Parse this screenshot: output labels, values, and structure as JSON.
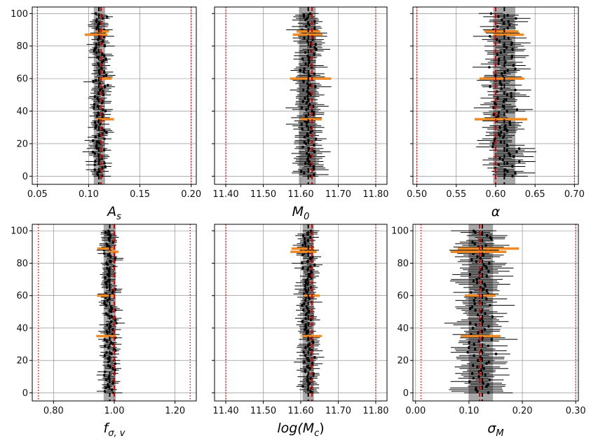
{
  "chart_data": [
    {
      "type": "scatter",
      "xlabel_main": "A",
      "xlabel_sub": "s",
      "xlim": [
        0.045,
        0.205
      ],
      "ylim": [
        -5,
        104
      ],
      "xticks": [
        0.05,
        0.1,
        0.15,
        0.2
      ],
      "xtick_labels": [
        "0.05",
        "0.10",
        "0.15",
        "0.20"
      ],
      "yticks": [
        0,
        20,
        40,
        60,
        80,
        100
      ],
      "ytick_labels": [
        "0",
        "20",
        "40",
        "60",
        "80",
        "100"
      ],
      "show_yticklabels": true,
      "band": [
        0.105,
        0.116
      ],
      "true_value": 0.112,
      "mean_value": 0.11,
      "prior_bounds": [
        0.05,
        0.2
      ],
      "center": 0.111,
      "spread": 0.004,
      "err": 0.007,
      "grid": true
    },
    {
      "type": "scatter",
      "xlabel_main": "M",
      "xlabel_sub": "0",
      "xlim": [
        11.37,
        11.83
      ],
      "ylim": [
        -5,
        104
      ],
      "xticks": [
        11.4,
        11.5,
        11.6,
        11.7,
        11.8
      ],
      "xtick_labels": [
        "11.40",
        "11.50",
        "11.60",
        "11.70",
        "11.80"
      ],
      "yticks": [
        0,
        20,
        40,
        60,
        80,
        100
      ],
      "ytick_labels": [
        "0",
        "20",
        "40",
        "60",
        "80",
        "100"
      ],
      "show_yticklabels": false,
      "band": [
        11.595,
        11.64
      ],
      "true_value": 11.63,
      "mean_value": 11.62,
      "prior_bounds": [
        11.4,
        11.8
      ],
      "center": 11.62,
      "spread": 0.012,
      "err": 0.03,
      "grid": true
    },
    {
      "type": "scatter",
      "xlabel_main": "α",
      "xlabel_sub": "",
      "xlim": [
        0.495,
        0.705
      ],
      "ylim": [
        -5,
        104
      ],
      "xticks": [
        0.5,
        0.55,
        0.6,
        0.65,
        0.7
      ],
      "xtick_labels": [
        "0.50",
        "0.55",
        "0.60",
        "0.65",
        "0.70"
      ],
      "yticks": [
        0,
        20,
        40,
        60,
        80,
        100
      ],
      "ytick_labels": [
        "0",
        "20",
        "40",
        "60",
        "80",
        "100"
      ],
      "show_yticklabels": false,
      "band": [
        0.597,
        0.625
      ],
      "true_value": 0.6,
      "mean_value": 0.611,
      "prior_bounds": [
        0.5,
        0.7
      ],
      "center": 0.611,
      "spread": 0.01,
      "err": 0.018,
      "grid": true
    },
    {
      "type": "scatter",
      "xlabel_main": "f",
      "xlabel_sub": "σ, v",
      "xlim": [
        0.73,
        1.27
      ],
      "ylim": [
        -5,
        104
      ],
      "xticks": [
        0.8,
        1.0,
        1.2
      ],
      "xtick_labels": [
        "0.80",
        "1.00",
        "1.20"
      ],
      "yticks": [
        0,
        20,
        40,
        60,
        80,
        100
      ],
      "ytick_labels": [
        "0",
        "20",
        "40",
        "60",
        "80",
        "100"
      ],
      "show_yticklabels": true,
      "band": [
        0.965,
        1.005
      ],
      "true_value": 1.0,
      "mean_value": 0.985,
      "prior_bounds": [
        0.75,
        1.25
      ],
      "center": 0.985,
      "spread": 0.012,
      "err": 0.02,
      "grid": true
    },
    {
      "type": "scatter",
      "xlabel_main": "log(M",
      "xlabel_sub": "c",
      "xlabel_tail": ")",
      "xlim": [
        11.37,
        11.83
      ],
      "ylim": [
        -5,
        104
      ],
      "xticks": [
        11.4,
        11.5,
        11.6,
        11.7,
        11.8
      ],
      "xtick_labels": [
        "11.40",
        "11.50",
        "11.60",
        "11.70",
        "11.80"
      ],
      "yticks": [
        0,
        20,
        40,
        60,
        80,
        100
      ],
      "ytick_labels": [
        "0",
        "20",
        "40",
        "60",
        "80",
        "100"
      ],
      "show_yticklabels": false,
      "band": [
        11.605,
        11.635
      ],
      "true_value": 11.63,
      "mean_value": 11.62,
      "prior_bounds": [
        11.4,
        11.8
      ],
      "center": 11.62,
      "spread": 0.01,
      "err": 0.02,
      "grid": true
    },
    {
      "type": "scatter",
      "xlabel_main": "σ",
      "xlabel_sub": "M",
      "xlim": [
        -0.005,
        0.305
      ],
      "ylim": [
        -5,
        104
      ],
      "xticks": [
        0.0,
        0.1,
        0.2,
        0.3
      ],
      "xtick_labels": [
        "0.00",
        "0.10",
        "0.20",
        "0.30"
      ],
      "yticks": [
        0,
        20,
        40,
        60,
        80,
        100
      ],
      "ytick_labels": [
        "0",
        "20",
        "40",
        "60",
        "80",
        "100"
      ],
      "show_yticklabels": true,
      "band": [
        0.1,
        0.145
      ],
      "true_value": 0.12,
      "mean_value": 0.125,
      "prior_bounds": [
        0.01,
        0.3
      ],
      "center": 0.122,
      "spread": 0.015,
      "err": 0.035,
      "grid": true
    }
  ],
  "colors": {
    "band": "#a8a8a8",
    "true_line": "#dd0000",
    "mean_line": "#000000",
    "prior_line": "#dd0000",
    "points": "#000000",
    "highlight": "#f08a24",
    "grid": "#808080"
  },
  "highlight_indices": [
    35,
    60,
    87,
    89
  ],
  "n_points": 100
}
